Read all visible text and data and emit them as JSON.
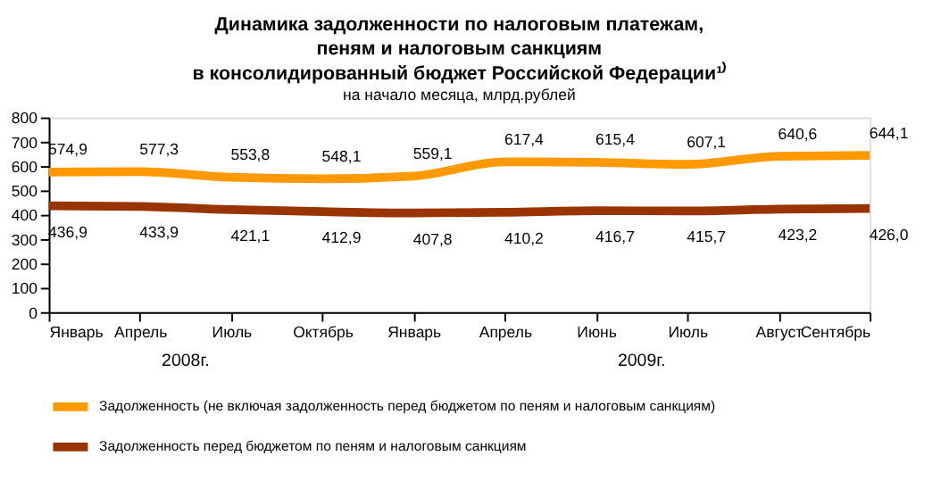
{
  "chart_data": {
    "type": "line",
    "title": [
      "Динамика задолженности по налоговым платежам,",
      "пеням и налоговым санкциям",
      "в консолидированный бюджет Российской Федерации¹⁾"
    ],
    "subtitle": "на начало месяца, млрд.рублей",
    "categories": [
      "Январь",
      "Апрель",
      "Июль",
      "Октябрь",
      "Январь",
      "Апрель",
      "Июнь",
      "Июль",
      "Август",
      "Сентябрь"
    ],
    "series": [
      {
        "name": "Задолженность (не включая задолженность перед бюджетом по пеням и налоговым санкциям)",
        "color": "#ff9900",
        "values": [
          574.9,
          577.3,
          553.8,
          548.1,
          559.1,
          617.4,
          615.4,
          607.1,
          640.6,
          644.1
        ],
        "value_labels": [
          "574,9",
          "577,3",
          "553,8",
          "548,1",
          "559,1",
          "617,4",
          "615,4",
          "607,1",
          "640,6",
          "644,1"
        ]
      },
      {
        "name": "Задолженность перед бюджетом по пеням и налоговым санкциям",
        "color": "#993300",
        "values": [
          436.9,
          433.9,
          421.1,
          412.9,
          407.8,
          410.2,
          416.7,
          415.7,
          423.2,
          426.0
        ],
        "value_labels": [
          "436,9",
          "433,9",
          "421,1",
          "412,9",
          "407,8",
          "410,2",
          "416,7",
          "415,7",
          "423,2",
          "426,0"
        ]
      }
    ],
    "ylim": [
      0,
      800
    ],
    "yticks": [
      0,
      100,
      200,
      300,
      400,
      500,
      600,
      700,
      800
    ],
    "grid": false,
    "legend": "bottom",
    "line_style": "solid",
    "marker": "none",
    "annotations": [
      "2008г.",
      "2009г."
    ]
  }
}
